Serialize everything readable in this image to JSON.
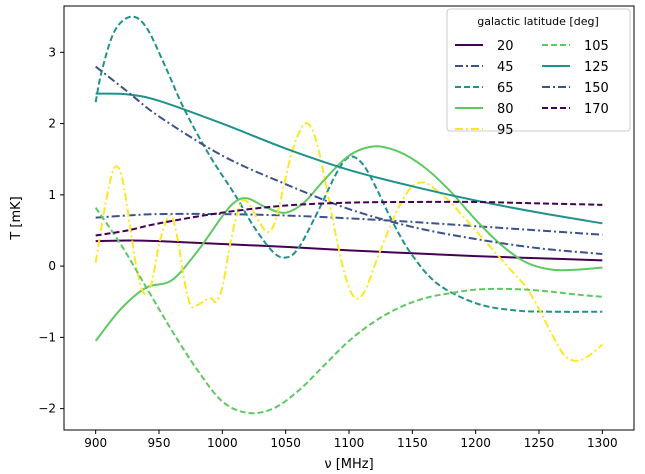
{
  "chart_data": {
    "type": "line",
    "title": "",
    "xlabel": "ν [MHz]",
    "ylabel": "T [mK]",
    "xlim": [
      875,
      1325
    ],
    "ylim": [
      -2.3,
      3.65
    ],
    "xticks": [
      900,
      950,
      1000,
      1050,
      1100,
      1150,
      1200,
      1250,
      1300
    ],
    "yticks": [
      -2,
      -1,
      0,
      1,
      2,
      3
    ],
    "ytick_labels": [
      "−2",
      "−1",
      "0",
      "1",
      "2",
      "3"
    ],
    "grid": false,
    "legend": {
      "title": "galactic latitude [deg]",
      "placement": "top-right",
      "columns": 2
    },
    "series": [
      {
        "name": "20",
        "color": "#440154",
        "dash": "solid",
        "x": [
          900,
          925,
          950,
          1000,
          1050,
          1100,
          1150,
          1200,
          1250,
          1300
        ],
        "y": [
          0.35,
          0.36,
          0.35,
          0.31,
          0.27,
          0.22,
          0.18,
          0.14,
          0.11,
          0.08
        ]
      },
      {
        "name": "45",
        "color": "#3b528b",
        "dash": "dashdot",
        "x": [
          900,
          925,
          950,
          1000,
          1050,
          1100,
          1150,
          1200,
          1250,
          1300
        ],
        "y": [
          0.68,
          0.71,
          0.73,
          0.73,
          0.71,
          0.67,
          0.62,
          0.56,
          0.5,
          0.44
        ]
      },
      {
        "name": "65",
        "color": "#21918c",
        "dash": "dashed",
        "x": [
          900,
          905,
          915,
          928,
          940,
          955,
          970,
          990,
          1010,
          1025,
          1040,
          1050,
          1060,
          1075,
          1090,
          1100,
          1110,
          1120,
          1135,
          1150,
          1170,
          1200,
          1230,
          1260,
          1300
        ],
        "y": [
          2.3,
          2.75,
          3.3,
          3.5,
          3.35,
          2.8,
          2.2,
          1.55,
          1.0,
          0.55,
          0.2,
          0.12,
          0.25,
          0.75,
          1.3,
          1.53,
          1.45,
          1.15,
          0.6,
          0.15,
          -0.25,
          -0.52,
          -0.62,
          -0.64,
          -0.64
        ]
      },
      {
        "name": "80",
        "color": "#5ec962",
        "dash": "solid",
        "x": [
          900,
          920,
          940,
          960,
          980,
          1000,
          1010,
          1020,
          1035,
          1050,
          1065,
          1080,
          1100,
          1120,
          1140,
          1160,
          1180,
          1200,
          1220,
          1240,
          1260,
          1280,
          1300
        ],
        "y": [
          -1.05,
          -0.6,
          -0.3,
          -0.2,
          0.2,
          0.7,
          0.9,
          0.95,
          0.82,
          0.75,
          0.9,
          1.2,
          1.55,
          1.68,
          1.6,
          1.38,
          1.05,
          0.65,
          0.3,
          0.05,
          -0.05,
          -0.05,
          -0.02
        ]
      },
      {
        "name": "95",
        "color": "#fde725",
        "dash": "dashdot",
        "x": [
          900,
          907,
          914,
          920,
          926,
          932,
          938,
          944,
          950,
          955,
          960,
          965,
          970,
          975,
          980,
          990,
          995,
          1000,
          1005,
          1010,
          1015,
          1020,
          1025,
          1030,
          1035,
          1040,
          1045,
          1050,
          1055,
          1060,
          1065,
          1070,
          1075,
          1080,
          1085,
          1090,
          1095,
          1100,
          1105,
          1110,
          1115,
          1120,
          1130,
          1140,
          1150,
          1160,
          1170,
          1180,
          1190,
          1200,
          1210,
          1220,
          1230,
          1240,
          1250,
          1260,
          1270,
          1280,
          1290,
          1300
        ],
        "y": [
          0.05,
          0.8,
          1.35,
          1.3,
          0.7,
          0.0,
          -0.38,
          -0.25,
          0.3,
          0.6,
          0.7,
          0.35,
          -0.2,
          -0.55,
          -0.55,
          -0.45,
          -0.5,
          -0.3,
          0.2,
          0.62,
          0.9,
          0.9,
          0.75,
          0.6,
          0.48,
          0.55,
          0.85,
          1.25,
          1.6,
          1.85,
          2.0,
          1.95,
          1.7,
          1.3,
          0.85,
          0.4,
          0.0,
          -0.3,
          -0.45,
          -0.42,
          -0.25,
          0.0,
          0.45,
          0.85,
          1.12,
          1.17,
          1.05,
          0.9,
          0.7,
          0.5,
          0.3,
          0.1,
          -0.1,
          -0.3,
          -0.6,
          -0.95,
          -1.25,
          -1.33,
          -1.25,
          -1.1
        ]
      },
      {
        "name": "105",
        "color": "#5ec962",
        "dash": "dashed",
        "x": [
          900,
          920,
          940,
          960,
          980,
          1000,
          1020,
          1040,
          1060,
          1080,
          1100,
          1120,
          1140,
          1160,
          1180,
          1200,
          1220,
          1240,
          1260,
          1280,
          1300
        ],
        "y": [
          0.82,
          0.3,
          -0.3,
          -0.9,
          -1.45,
          -1.9,
          -2.06,
          -2.0,
          -1.75,
          -1.4,
          -1.05,
          -0.78,
          -0.58,
          -0.45,
          -0.38,
          -0.33,
          -0.32,
          -0.33,
          -0.36,
          -0.4,
          -0.43
        ]
      },
      {
        "name": "125",
        "color": "#21918c",
        "dash": "solid",
        "x": [
          900,
          925,
          950,
          1000,
          1050,
          1100,
          1150,
          1200,
          1250,
          1300
        ],
        "y": [
          2.42,
          2.41,
          2.32,
          2.0,
          1.65,
          1.35,
          1.12,
          0.92,
          0.75,
          0.6
        ]
      },
      {
        "name": "150",
        "color": "#3b528b",
        "dash": "dashdot",
        "x": [
          900,
          925,
          950,
          1000,
          1050,
          1100,
          1150,
          1200,
          1250,
          1300
        ],
        "y": [
          2.8,
          2.45,
          2.1,
          1.55,
          1.15,
          0.8,
          0.55,
          0.38,
          0.25,
          0.17
        ]
      },
      {
        "name": "170",
        "color": "#440154",
        "dash": "dashed",
        "x": [
          900,
          925,
          950,
          1000,
          1050,
          1100,
          1150,
          1200,
          1250,
          1300
        ],
        "y": [
          0.43,
          0.5,
          0.6,
          0.75,
          0.85,
          0.89,
          0.9,
          0.9,
          0.88,
          0.86
        ]
      }
    ]
  }
}
